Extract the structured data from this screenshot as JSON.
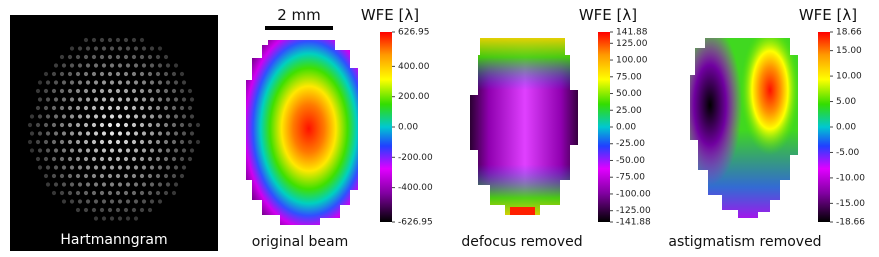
{
  "panels": [
    {
      "caption": "Hartmanngram"
    },
    {
      "caption": "original beam",
      "scale_bar": "2 mm",
      "colorbar": {
        "title": "WFE [λ]",
        "ticks": [
          {
            "value": 626.95,
            "label": "626.95"
          },
          {
            "value": 400,
            "label": "400.00"
          },
          {
            "value": 200,
            "label": "200.00"
          },
          {
            "value": 0,
            "label": "0.00"
          },
          {
            "value": -200,
            "label": "-200.00"
          },
          {
            "value": -400,
            "label": "-400.00"
          },
          {
            "value": -626.95,
            "label": "-626.95"
          }
        ]
      }
    },
    {
      "caption": "defocus removed",
      "colorbar": {
        "title": "WFE [λ]",
        "ticks": [
          {
            "value": 141.88,
            "label": "141.88"
          },
          {
            "value": 125,
            "label": "125.00"
          },
          {
            "value": 100,
            "label": "100.00"
          },
          {
            "value": 75,
            "label": "75.00"
          },
          {
            "value": 50,
            "label": "50.00"
          },
          {
            "value": 25,
            "label": "25.00"
          },
          {
            "value": 0,
            "label": "0.00"
          },
          {
            "value": -25,
            "label": "-25.00"
          },
          {
            "value": -50,
            "label": "-50.00"
          },
          {
            "value": -75,
            "label": "-75.00"
          },
          {
            "value": -100,
            "label": "-100.00"
          },
          {
            "value": -125,
            "label": "-125.00"
          },
          {
            "value": -141.88,
            "label": "-141.88"
          }
        ]
      }
    },
    {
      "caption": "astigmatism removed",
      "colorbar": {
        "title": "WFE [λ]",
        "ticks": [
          {
            "value": 18.66,
            "label": "18.66"
          },
          {
            "value": 15,
            "label": "15.00"
          },
          {
            "value": 10,
            "label": "10.00"
          },
          {
            "value": 5,
            "label": "5.00"
          },
          {
            "value": 0,
            "label": "0.00"
          },
          {
            "value": -5,
            "label": "-5.00"
          },
          {
            "value": -10,
            "label": "-10.00"
          },
          {
            "value": -15,
            "label": "-15.00"
          },
          {
            "value": -18.66,
            "label": "-18.66"
          }
        ]
      }
    }
  ]
}
